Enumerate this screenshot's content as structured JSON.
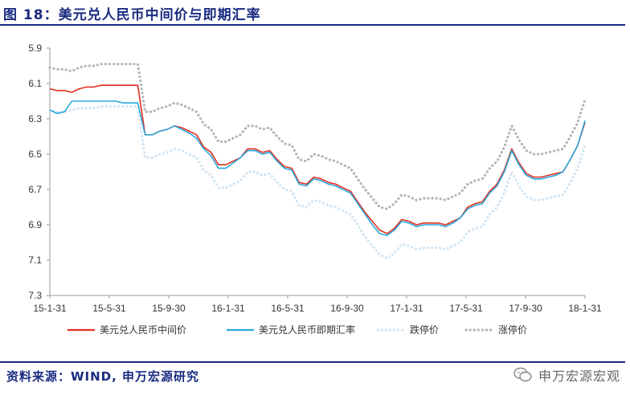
{
  "header": {
    "title": "图 18：美元兑人民币中间价与即期汇率"
  },
  "footer": {
    "source": "资料来源：WIND, 申万宏源研究",
    "watermark": "申万宏源宏观"
  },
  "colors": {
    "mid": "#e03020",
    "spot": "#2aa7dc",
    "lower": "#d2e6f4",
    "upper": "#b4b4b4",
    "brand": "#1a2b80"
  },
  "chart_data": {
    "type": "line",
    "ylim": [
      5.9,
      7.3
    ],
    "y_inverted": true,
    "yticks": [
      5.9,
      6.1,
      6.3,
      6.5,
      6.7,
      6.9,
      7.1,
      7.3
    ],
    "ytick_labels": [
      "5.9",
      "6.1",
      "6.3",
      "6.5",
      "6.7",
      "6.9",
      "7.1",
      "7.3"
    ],
    "xticks": [
      "15-1-31",
      "15-5-31",
      "15-9-30",
      "16-1-31",
      "16-5-31",
      "16-9-30",
      "17-1-31",
      "17-5-31",
      "17-9-30",
      "18-1-31"
    ],
    "x": [
      "15-1-31",
      "15-2-15",
      "15-3-01",
      "15-3-15",
      "15-4-01",
      "15-4-15",
      "15-5-01",
      "15-5-15",
      "15-5-31",
      "15-6-15",
      "15-7-01",
      "15-7-15",
      "15-8-10",
      "15-8-12",
      "15-8-31",
      "15-9-15",
      "15-9-30",
      "15-10-15",
      "15-11-01",
      "15-11-15",
      "15-12-01",
      "15-12-15",
      "16-1-01",
      "16-1-15",
      "16-1-31",
      "16-2-15",
      "16-3-01",
      "16-3-15",
      "16-4-01",
      "16-4-15",
      "16-5-01",
      "16-5-15",
      "16-5-31",
      "16-6-15",
      "16-7-01",
      "16-7-15",
      "16-8-01",
      "16-8-15",
      "16-9-01",
      "16-9-15",
      "16-9-30",
      "16-10-15",
      "16-11-01",
      "16-11-15",
      "16-12-01",
      "16-12-15",
      "17-1-01",
      "17-1-15",
      "17-1-31",
      "17-2-15",
      "17-3-01",
      "17-3-15",
      "17-4-01",
      "17-4-15",
      "17-5-01",
      "17-5-15",
      "17-5-31",
      "17-6-15",
      "17-7-01",
      "17-7-15",
      "17-8-01",
      "17-8-15",
      "17-9-01",
      "17-9-08",
      "17-9-15",
      "17-9-30",
      "17-10-15",
      "17-11-01",
      "17-11-15",
      "17-12-01",
      "17-12-15",
      "18-1-01",
      "18-1-15",
      "18-1-31"
    ],
    "series": [
      {
        "name": "美元兑人民币中间价",
        "style": "solid",
        "color": "#e03020",
        "values": [
          6.13,
          6.14,
          6.14,
          6.15,
          6.13,
          6.12,
          6.12,
          6.11,
          6.11,
          6.11,
          6.11,
          6.11,
          6.11,
          6.39,
          6.39,
          6.37,
          6.36,
          6.34,
          6.35,
          6.37,
          6.39,
          6.46,
          6.49,
          6.56,
          6.56,
          6.54,
          6.52,
          6.47,
          6.47,
          6.49,
          6.48,
          6.53,
          6.57,
          6.58,
          6.66,
          6.67,
          6.63,
          6.64,
          6.66,
          6.67,
          6.69,
          6.71,
          6.77,
          6.83,
          6.88,
          6.93,
          6.95,
          6.92,
          6.87,
          6.88,
          6.9,
          6.89,
          6.89,
          6.89,
          6.9,
          6.88,
          6.86,
          6.8,
          6.78,
          6.77,
          6.71,
          6.67,
          6.59,
          6.47,
          6.55,
          6.61,
          6.63,
          6.63,
          6.62,
          6.61,
          6.6,
          6.53,
          6.45,
          6.32
        ]
      },
      {
        "name": "美元兑人民币即期汇率",
        "style": "solid",
        "color": "#2aa7dc",
        "values": [
          6.25,
          6.27,
          6.26,
          6.2,
          6.2,
          6.2,
          6.2,
          6.2,
          6.2,
          6.2,
          6.21,
          6.21,
          6.21,
          6.39,
          6.39,
          6.37,
          6.36,
          6.34,
          6.36,
          6.38,
          6.41,
          6.47,
          6.51,
          6.58,
          6.58,
          6.55,
          6.52,
          6.48,
          6.48,
          6.5,
          6.49,
          6.54,
          6.58,
          6.59,
          6.67,
          6.68,
          6.64,
          6.65,
          6.67,
          6.68,
          6.7,
          6.72,
          6.78,
          6.84,
          6.9,
          6.95,
          6.96,
          6.93,
          6.88,
          6.89,
          6.91,
          6.9,
          6.9,
          6.9,
          6.91,
          6.89,
          6.86,
          6.81,
          6.79,
          6.78,
          6.72,
          6.68,
          6.6,
          6.48,
          6.56,
          6.62,
          6.64,
          6.64,
          6.63,
          6.62,
          6.6,
          6.53,
          6.45,
          6.31
        ]
      },
      {
        "name": "跌停价",
        "style": "dotted",
        "color": "#d2e6f4",
        "values": [
          6.25,
          6.26,
          6.26,
          6.25,
          6.24,
          6.24,
          6.24,
          6.23,
          6.23,
          6.23,
          6.23,
          6.23,
          6.23,
          6.52,
          6.52,
          6.5,
          6.49,
          6.47,
          6.48,
          6.5,
          6.52,
          6.59,
          6.62,
          6.69,
          6.69,
          6.67,
          6.65,
          6.6,
          6.6,
          6.62,
          6.61,
          6.66,
          6.7,
          6.71,
          6.79,
          6.8,
          6.76,
          6.77,
          6.79,
          6.8,
          6.82,
          6.84,
          6.9,
          6.97,
          7.02,
          7.07,
          7.09,
          7.06,
          7.01,
          7.02,
          7.04,
          7.03,
          7.03,
          7.03,
          7.04,
          7.02,
          7.0,
          6.94,
          6.92,
          6.91,
          6.84,
          6.8,
          6.72,
          6.6,
          6.68,
          6.74,
          6.76,
          6.76,
          6.75,
          6.74,
          6.73,
          6.66,
          6.58,
          6.45
        ]
      },
      {
        "name": "涨停价",
        "style": "dotted",
        "color": "#b4b4b4",
        "values": [
          6.01,
          6.02,
          6.02,
          6.03,
          6.01,
          6.0,
          6.0,
          5.99,
          5.99,
          5.99,
          5.99,
          5.99,
          5.99,
          6.26,
          6.26,
          6.24,
          6.23,
          6.21,
          6.22,
          6.24,
          6.26,
          6.33,
          6.36,
          6.43,
          6.43,
          6.41,
          6.39,
          6.34,
          6.34,
          6.36,
          6.35,
          6.4,
          6.44,
          6.45,
          6.53,
          6.54,
          6.5,
          6.51,
          6.53,
          6.54,
          6.56,
          6.58,
          6.64,
          6.7,
          6.75,
          6.8,
          6.81,
          6.78,
          6.73,
          6.74,
          6.76,
          6.75,
          6.75,
          6.75,
          6.76,
          6.74,
          6.72,
          6.67,
          6.65,
          6.64,
          6.58,
          6.54,
          6.46,
          6.34,
          6.42,
          6.48,
          6.5,
          6.5,
          6.49,
          6.48,
          6.47,
          6.4,
          6.32,
          6.19
        ]
      }
    ],
    "legend": {
      "position": "bottom",
      "entries": [
        "美元兑人民币中间价",
        "美元兑人民币即期汇率",
        "跌停价",
        "涨停价"
      ]
    }
  }
}
